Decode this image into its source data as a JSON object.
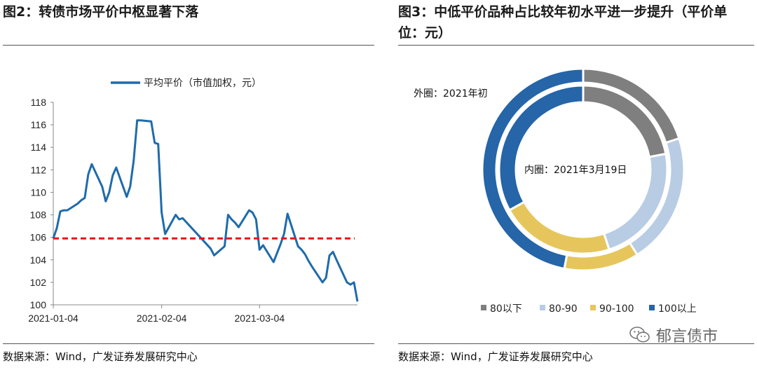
{
  "left_panel": {
    "title": "图2：转债市场平价中枢显著下落",
    "source": "数据来源：Wind，广发证券发展研究中心"
  },
  "right_panel": {
    "title": "图3：中低平价品种占比较年初水平进一步提升（平价单位：元）",
    "source": "数据来源：Wind，广发证券发展研究中心"
  },
  "watermark": {
    "text": "郁言债市",
    "icon": "wechat-icon"
  },
  "chart_data": [
    {
      "type": "line",
      "title": "",
      "legend": [
        "平均平价（市值加权，元）"
      ],
      "legend_position": "top",
      "xlabel": "",
      "ylabel": "",
      "ylim": [
        100,
        118
      ],
      "yticks": [
        100,
        102,
        104,
        106,
        108,
        110,
        112,
        114,
        116,
        118
      ],
      "xticks": [
        "2021-01-04",
        "2021-02-04",
        "2021-03-04"
      ],
      "xlim": [
        "2021-01-04",
        "2021-03-29"
      ],
      "grid": false,
      "reference_line": {
        "y": 105.9,
        "style": "dashed",
        "color": "#e8141b"
      },
      "series": [
        {
          "name": "平均平价（市值加权，元）",
          "color": "#1f6bab",
          "points": [
            [
              "2021-01-04",
              105.9
            ],
            [
              "2021-01-05",
              106.8
            ],
            [
              "2021-01-06",
              108.3
            ],
            [
              "2021-01-07",
              108.4
            ],
            [
              "2021-01-08",
              108.4
            ],
            [
              "2021-01-11",
              109.0
            ],
            [
              "2021-01-12",
              109.3
            ],
            [
              "2021-01-13",
              109.5
            ],
            [
              "2021-01-14",
              111.6
            ],
            [
              "2021-01-15",
              112.5
            ],
            [
              "2021-01-18",
              110.5
            ],
            [
              "2021-01-19",
              109.2
            ],
            [
              "2021-01-20",
              110.0
            ],
            [
              "2021-01-21",
              111.5
            ],
            [
              "2021-01-22",
              112.2
            ],
            [
              "2021-01-25",
              109.6
            ],
            [
              "2021-01-26",
              110.5
            ],
            [
              "2021-01-27",
              112.8
            ],
            [
              "2021-01-28",
              116.4
            ],
            [
              "2021-01-29",
              116.4
            ],
            [
              "2021-02-01",
              116.3
            ],
            [
              "2021-02-02",
              114.4
            ],
            [
              "2021-02-03",
              114.3
            ],
            [
              "2021-02-04",
              108.2
            ],
            [
              "2021-02-05",
              106.3
            ],
            [
              "2021-02-08",
              108.0
            ],
            [
              "2021-02-09",
              107.6
            ],
            [
              "2021-02-10",
              107.7
            ],
            [
              "2021-02-18",
              105.0
            ],
            [
              "2021-02-19",
              104.4
            ],
            [
              "2021-02-22",
              105.2
            ],
            [
              "2021-02-23",
              108.0
            ],
            [
              "2021-02-24",
              107.6
            ],
            [
              "2021-02-25",
              107.3
            ],
            [
              "2021-02-26",
              106.9
            ],
            [
              "2021-03-01",
              108.4
            ],
            [
              "2021-03-02",
              108.2
            ],
            [
              "2021-03-03",
              107.6
            ],
            [
              "2021-03-04",
              104.9
            ],
            [
              "2021-03-05",
              105.3
            ],
            [
              "2021-03-08",
              103.8
            ],
            [
              "2021-03-09",
              104.6
            ],
            [
              "2021-03-10",
              105.4
            ],
            [
              "2021-03-11",
              106.3
            ],
            [
              "2021-03-12",
              108.1
            ],
            [
              "2021-03-15",
              105.2
            ],
            [
              "2021-03-16",
              104.9
            ],
            [
              "2021-03-17",
              104.5
            ],
            [
              "2021-03-18",
              103.9
            ],
            [
              "2021-03-19",
              103.4
            ],
            [
              "2021-03-22",
              102.0
            ],
            [
              "2021-03-23",
              102.4
            ],
            [
              "2021-03-24",
              104.4
            ],
            [
              "2021-03-25",
              104.7
            ],
            [
              "2021-03-26",
              104.0
            ],
            [
              "2021-03-29",
              102.0
            ],
            [
              "2021-03-30",
              101.8
            ],
            [
              "2021-03-31",
              102.0
            ],
            [
              "2021-04-01",
              100.3
            ]
          ]
        }
      ]
    },
    {
      "type": "pie",
      "subtype": "double-donut",
      "title": "",
      "categories": [
        "80以下",
        "80-90",
        "90-100",
        "100以上"
      ],
      "colors": [
        "#7f7f7f",
        "#b8cce4",
        "#e6c65c",
        "#2565a8"
      ],
      "legend_position": "bottom",
      "series": [
        {
          "name": "外圈：2021年初",
          "values": [
            20.0,
            21.0,
            12.0,
            47.0
          ]
        },
        {
          "name": "内圈：2021年3月19日",
          "values": [
            22.0,
            23.0,
            22.0,
            33.0
          ]
        }
      ]
    }
  ]
}
